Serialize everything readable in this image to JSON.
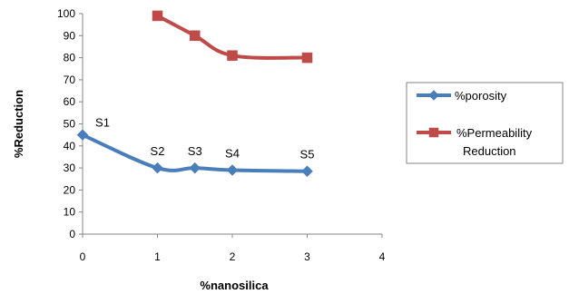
{
  "chart_data": {
    "type": "line",
    "title": "",
    "xlabel": "%nanosilica",
    "ylabel": "%Reduction",
    "xlim": [
      0,
      4
    ],
    "ylim": [
      0,
      100
    ],
    "x_ticks": [
      0,
      1,
      2,
      3,
      4
    ],
    "y_ticks": [
      0,
      10,
      20,
      30,
      40,
      50,
      60,
      70,
      80,
      90,
      100
    ],
    "grid": false,
    "legend_position": "right",
    "series": [
      {
        "name": "%porosity",
        "color": "#4a7ebb",
        "marker": "diamond",
        "x": [
          0,
          1,
          1.5,
          2,
          3
        ],
        "y": [
          45,
          30,
          30,
          29,
          28.5
        ],
        "point_labels": [
          "S1",
          "S2",
          "S3",
          "S4",
          "S5"
        ]
      },
      {
        "name": "%Permeability Reduction",
        "color": "#be4b48",
        "marker": "square",
        "x": [
          1,
          1.5,
          2,
          3
        ],
        "y": [
          99,
          90,
          81,
          80
        ]
      }
    ]
  }
}
